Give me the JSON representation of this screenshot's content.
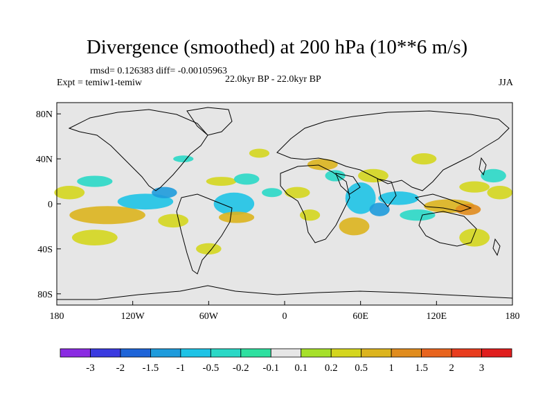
{
  "chart_data": {
    "type": "heatmap",
    "title": "Divergence (smoothed) at 200 hPa (10**6 m/s)",
    "stats": "rmsd= 0.126383 diff= -0.00105963",
    "period": "22.0kyr BP - 22.0kyr BP",
    "experiment": "Expt = temiw1-temiw",
    "season": "JJA",
    "x_ticks": [
      {
        "value": -180,
        "label": "180"
      },
      {
        "value": -120,
        "label": "120W"
      },
      {
        "value": -60,
        "label": "60W"
      },
      {
        "value": 0,
        "label": "0"
      },
      {
        "value": 60,
        "label": "60E"
      },
      {
        "value": 120,
        "label": "120E"
      },
      {
        "value": 180,
        "label": "180"
      }
    ],
    "y_ticks": [
      {
        "value": 80,
        "label": "80N"
      },
      {
        "value": 40,
        "label": "40N"
      },
      {
        "value": 0,
        "label": "0"
      },
      {
        "value": -40,
        "label": "40S"
      },
      {
        "value": -80,
        "label": "80S"
      }
    ],
    "xlim": [
      -180,
      180
    ],
    "ylim": [
      -90,
      90
    ],
    "colorbar": {
      "labels": [
        "-3",
        "-2",
        "-1.5",
        "-1",
        "-0.5",
        "-0.2",
        "-0.1",
        "0.1",
        "0.2",
        "0.5",
        "1",
        "1.5",
        "2",
        "3"
      ],
      "colors": [
        "#8a2be2",
        "#3a3ae0",
        "#1e64d8",
        "#1e9bdc",
        "#1ec3e6",
        "#2ad8c6",
        "#2ee0a0",
        "#e6e6e6",
        "#a6e02a",
        "#d4d61e",
        "#dcb41e",
        "#e08c1e",
        "#e8641e",
        "#e83c1e",
        "#e01e1e"
      ]
    },
    "anomalies": [
      {
        "lon": -170,
        "lat": 10,
        "rx": 12,
        "ry": 6,
        "level": "0.2"
      },
      {
        "lon": -150,
        "lat": 20,
        "rx": 14,
        "ry": 5,
        "level": "-0.2"
      },
      {
        "lon": -140,
        "lat": -10,
        "rx": 30,
        "ry": 8,
        "level": "0.5"
      },
      {
        "lon": -150,
        "lat": -30,
        "rx": 18,
        "ry": 7,
        "level": "0.2"
      },
      {
        "lon": -110,
        "lat": 2,
        "rx": 22,
        "ry": 7,
        "level": "-0.5"
      },
      {
        "lon": -95,
        "lat": 10,
        "rx": 10,
        "ry": 5,
        "level": "-1"
      },
      {
        "lon": -88,
        "lat": -15,
        "rx": 12,
        "ry": 6,
        "level": "0.2"
      },
      {
        "lon": -40,
        "lat": 0,
        "rx": 16,
        "ry": 10,
        "level": "-0.5"
      },
      {
        "lon": -38,
        "lat": -12,
        "rx": 14,
        "ry": 5,
        "level": "0.5"
      },
      {
        "lon": -80,
        "lat": 40,
        "rx": 8,
        "ry": 3,
        "level": "-0.2"
      },
      {
        "lon": -50,
        "lat": 20,
        "rx": 12,
        "ry": 4,
        "level": "0.2"
      },
      {
        "lon": -30,
        "lat": 22,
        "rx": 10,
        "ry": 5,
        "level": "-0.2"
      },
      {
        "lon": -20,
        "lat": 45,
        "rx": 8,
        "ry": 4,
        "level": "0.2"
      },
      {
        "lon": -60,
        "lat": -40,
        "rx": 10,
        "ry": 5,
        "level": "0.2"
      },
      {
        "lon": -10,
        "lat": 10,
        "rx": 8,
        "ry": 4,
        "level": "-0.2"
      },
      {
        "lon": 10,
        "lat": 10,
        "rx": 10,
        "ry": 5,
        "level": "0.2"
      },
      {
        "lon": 20,
        "lat": -10,
        "rx": 8,
        "ry": 5,
        "level": "0.2"
      },
      {
        "lon": 30,
        "lat": 35,
        "rx": 12,
        "ry": 5,
        "level": "0.5"
      },
      {
        "lon": 40,
        "lat": 25,
        "rx": 8,
        "ry": 5,
        "level": "-0.2"
      },
      {
        "lon": 60,
        "lat": 5,
        "rx": 12,
        "ry": 14,
        "level": "-0.5"
      },
      {
        "lon": 75,
        "lat": -5,
        "rx": 8,
        "ry": 6,
        "level": "-1"
      },
      {
        "lon": 55,
        "lat": -20,
        "rx": 12,
        "ry": 8,
        "level": "0.5"
      },
      {
        "lon": 70,
        "lat": 25,
        "rx": 12,
        "ry": 6,
        "level": "0.2"
      },
      {
        "lon": 90,
        "lat": 5,
        "rx": 16,
        "ry": 6,
        "level": "-0.5"
      },
      {
        "lon": 105,
        "lat": -10,
        "rx": 14,
        "ry": 5,
        "level": "-0.2"
      },
      {
        "lon": 130,
        "lat": -2,
        "rx": 20,
        "ry": 6,
        "level": "0.5"
      },
      {
        "lon": 145,
        "lat": -5,
        "rx": 10,
        "ry": 5,
        "level": "1"
      },
      {
        "lon": 110,
        "lat": 40,
        "rx": 10,
        "ry": 5,
        "level": "0.2"
      },
      {
        "lon": 150,
        "lat": 15,
        "rx": 12,
        "ry": 5,
        "level": "0.2"
      },
      {
        "lon": 165,
        "lat": 25,
        "rx": 10,
        "ry": 6,
        "level": "-0.2"
      },
      {
        "lon": 150,
        "lat": -30,
        "rx": 12,
        "ry": 8,
        "level": "0.2"
      },
      {
        "lon": 170,
        "lat": 10,
        "rx": 10,
        "ry": 6,
        "level": "0.2"
      }
    ]
  }
}
